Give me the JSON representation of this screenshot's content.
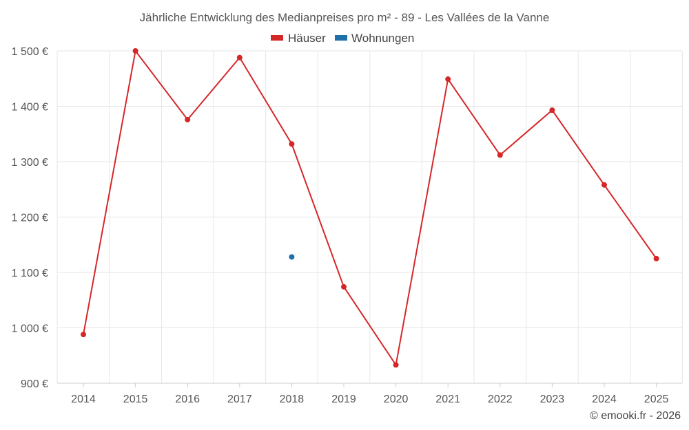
{
  "chart_data": {
    "type": "line",
    "title": "Jährliche Entwicklung des Medianpreises pro m² - 89 - Les Vallées de la Vanne",
    "categories": [
      "2014",
      "2015",
      "2016",
      "2017",
      "2018",
      "2019",
      "2020",
      "2021",
      "2022",
      "2023",
      "2024",
      "2025"
    ],
    "series": [
      {
        "name": "Häuser",
        "color": "#d62728",
        "values": [
          988,
          1500,
          1376,
          1488,
          1332,
          1074,
          933,
          1449,
          1312,
          1393,
          1258,
          1125
        ]
      },
      {
        "name": "Wohnungen",
        "color": "#1f6fa8",
        "values": [
          null,
          null,
          null,
          null,
          1128,
          null,
          null,
          null,
          null,
          null,
          null,
          null
        ]
      }
    ],
    "ylim": [
      900,
      1500
    ],
    "yticks": [
      900,
      1000,
      1100,
      1200,
      1300,
      1400,
      1500
    ],
    "ytick_labels": [
      "900 €",
      "1 000 €",
      "1 100 €",
      "1 200 €",
      "1 300 €",
      "1 400 €",
      "1 500 €"
    ],
    "xlabel": "",
    "ylabel": "",
    "grid": true,
    "legend_position": "top-center"
  },
  "credit": "© emooki.fr - 2026"
}
